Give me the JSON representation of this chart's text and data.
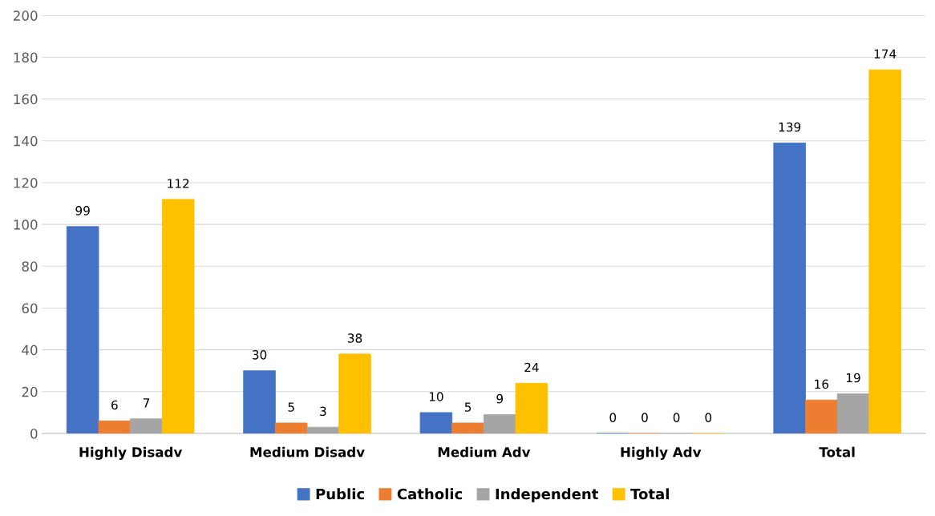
{
  "chart_data": {
    "type": "bar",
    "categories": [
      "Highly Disadv",
      "Medium Disadv",
      "Medium Adv",
      "Highly Adv",
      "Total"
    ],
    "series": [
      {
        "name": "Public",
        "color": "#4472c4",
        "values": [
          99,
          30,
          10,
          0,
          139
        ]
      },
      {
        "name": "Catholic",
        "color": "#ed7d31",
        "values": [
          6,
          5,
          5,
          0,
          16
        ]
      },
      {
        "name": "Independent",
        "color": "#a5a5a5",
        "values": [
          7,
          3,
          9,
          0,
          19
        ]
      },
      {
        "name": "Total",
        "color": "#ffc000",
        "values": [
          112,
          38,
          24,
          0,
          174
        ]
      }
    ],
    "ylim": [
      0,
      200
    ],
    "yticks": [
      0,
      20,
      40,
      60,
      80,
      100,
      120,
      140,
      160,
      180,
      200
    ],
    "grid": "y",
    "legend": "bottom",
    "data_labels": true
  }
}
